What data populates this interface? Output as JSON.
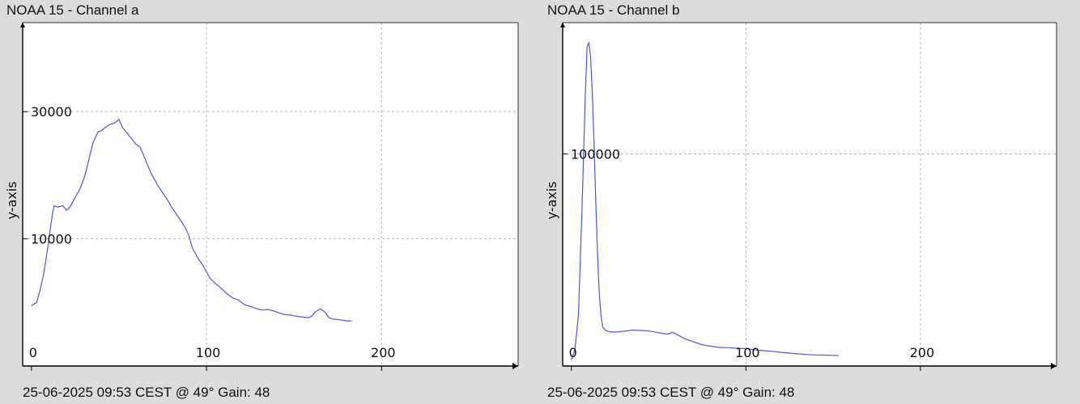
{
  "chart_data": [
    {
      "type": "line",
      "title": "NOAA 15 - Channel a",
      "footer": "25-06-2025 09:53 CEST @ 49° Gain: 48",
      "ylabel": "y-axis",
      "xlabel": "",
      "xlim": [
        -5,
        278
      ],
      "ylim": [
        -10000,
        44000
      ],
      "x_ticks": [
        0,
        100,
        200
      ],
      "y_ticks": [
        10000,
        30000
      ],
      "grid": true,
      "color": "#5555dd",
      "series": [
        {
          "x": [
            0,
            3,
            5,
            7,
            9,
            11,
            12,
            13,
            15,
            18,
            20,
            22,
            25,
            28,
            30,
            32,
            35,
            38,
            40,
            42,
            45,
            48,
            50,
            52,
            55,
            58,
            60,
            62,
            65,
            68,
            70,
            72,
            75,
            78,
            80,
            82,
            85,
            88,
            90,
            92,
            95,
            98,
            100,
            102,
            105,
            108,
            110,
            112,
            115,
            118,
            120,
            122,
            125,
            128,
            130,
            132,
            135,
            138,
            140,
            142,
            145,
            148,
            150,
            152,
            155,
            158,
            160,
            162,
            165,
            168,
            170,
            172,
            175,
            178,
            180,
            183
          ],
          "y": [
            -500,
            0,
            2000,
            4500,
            8000,
            12000,
            14000,
            15200,
            15000,
            15200,
            14500,
            15000,
            16500,
            18000,
            19500,
            21500,
            25000,
            26800,
            27000,
            27500,
            28000,
            28300,
            28800,
            27500,
            26500,
            25500,
            24800,
            24500,
            22500,
            20500,
            19500,
            18500,
            17200,
            16000,
            15000,
            14200,
            13000,
            11700,
            10500,
            8500,
            7000,
            5800,
            4800,
            3800,
            3000,
            2300,
            1800,
            1300,
            700,
            400,
            0,
            -400,
            -600,
            -900,
            -1100,
            -1200,
            -1100,
            -1300,
            -1500,
            -1700,
            -1900,
            -2000,
            -2100,
            -2200,
            -2300,
            -2400,
            -2200,
            -1500,
            -1000,
            -1600,
            -2400,
            -2600,
            -2700,
            -2800,
            -2900,
            -2900
          ]
        }
      ]
    },
    {
      "type": "line",
      "title": "NOAA 15 - Channel b",
      "footer": "25-06-2025 09:53 CEST @ 49° Gain: 48",
      "ylabel": "y-axis",
      "xlabel": "",
      "xlim": [
        -5,
        278
      ],
      "ylim": [
        -5000,
        165000
      ],
      "x_ticks": [
        0,
        100,
        200
      ],
      "y_ticks": [
        100000
      ],
      "grid": true,
      "color": "#5555dd",
      "series": [
        {
          "x": [
            0,
            2,
            4,
            6,
            8,
            9,
            10,
            11,
            12,
            13,
            14,
            15,
            16,
            17,
            18,
            20,
            22,
            25,
            30,
            35,
            40,
            45,
            50,
            55,
            58,
            60,
            65,
            70,
            75,
            80,
            85,
            90,
            95,
            100,
            105,
            110,
            115,
            120,
            125,
            130,
            135,
            140,
            145,
            150,
            153
          ],
          "y": [
            -2000,
            3000,
            20000,
            70000,
            130000,
            153000,
            155000,
            148000,
            130000,
            105000,
            75000,
            50000,
            30000,
            20000,
            14000,
            12500,
            12000,
            11800,
            12200,
            12800,
            12600,
            12300,
            11500,
            10800,
            11600,
            10900,
            8500,
            7000,
            5500,
            4800,
            4200,
            4100,
            3800,
            3600,
            3000,
            2600,
            2300,
            1800,
            1400,
            1000,
            700,
            500,
            400,
            300,
            200
          ]
        }
      ]
    }
  ]
}
